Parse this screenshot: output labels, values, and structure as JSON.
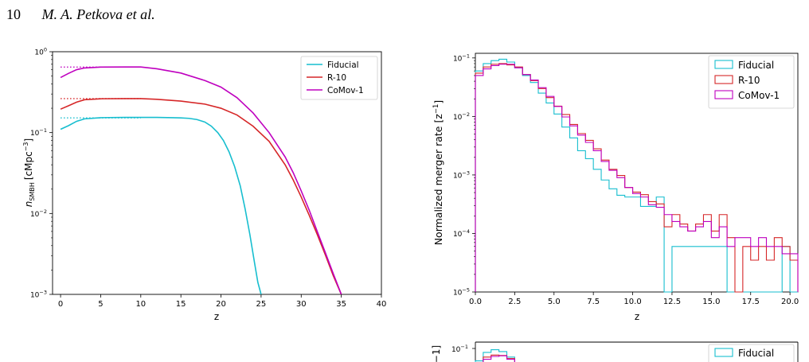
{
  "header": {
    "page_number": "10",
    "authors": "M. A. Petkova et al."
  },
  "chart_data": [
    {
      "type": "line",
      "xlabel": "z",
      "ylabel_main": "n",
      "ylabel_sub": "SMBH",
      "ylabel_unit": "[cMpc",
      "ylabel_exp": "−3",
      "ylabel_close": "]",
      "xlim": [
        -1,
        40
      ],
      "ylim": [
        0.001,
        1
      ],
      "yscale": "log",
      "xticks": [
        "0",
        "5",
        "10",
        "15",
        "20",
        "25",
        "30",
        "35",
        "40"
      ],
      "xtick_values": [
        0,
        5,
        10,
        15,
        20,
        25,
        30,
        35,
        40
      ],
      "yticks": [
        {
          "base": "10",
          "exp": "0",
          "value": 1
        },
        {
          "base": "10",
          "exp": "−1",
          "value": 0.1
        },
        {
          "base": "10",
          "exp": "−2",
          "value": 0.01
        },
        {
          "base": "10",
          "exp": "−3",
          "value": 0.001
        }
      ],
      "legend_position": "top-right",
      "series": [
        {
          "name": "Fiducial",
          "color": "#17becf",
          "x": [
            0,
            1,
            2,
            3,
            5,
            8,
            10,
            12,
            14,
            15,
            16,
            17,
            18,
            18.8,
            19.6,
            20.3,
            21,
            21.7,
            22.4,
            23,
            23.6,
            24.2,
            24.6,
            25
          ],
          "y": [
            0.11,
            0.122,
            0.138,
            0.148,
            0.153,
            0.154,
            0.154,
            0.154,
            0.153,
            0.152,
            0.15,
            0.145,
            0.135,
            0.12,
            0.1,
            0.08,
            0.058,
            0.038,
            0.022,
            0.0115,
            0.0055,
            0.0024,
            0.0014,
            0.001
          ],
          "dotted_level": 0.152
        },
        {
          "name": "R-10",
          "color": "#d62728",
          "x": [
            0,
            1,
            2,
            3,
            5,
            8,
            10,
            12,
            15,
            18,
            20,
            22,
            24,
            26,
            28,
            29,
            30,
            31,
            32,
            33,
            34,
            35
          ],
          "y": [
            0.195,
            0.215,
            0.238,
            0.255,
            0.262,
            0.263,
            0.263,
            0.258,
            0.245,
            0.225,
            0.2,
            0.165,
            0.12,
            0.078,
            0.04,
            0.026,
            0.016,
            0.0095,
            0.0055,
            0.0031,
            0.0017,
            0.001
          ],
          "dotted_level": 0.263
        },
        {
          "name": "CoMov-1",
          "color": "#bf00bf",
          "x": [
            0,
            1,
            2,
            3,
            5,
            8,
            10,
            12,
            15,
            18,
            20,
            22,
            24,
            26,
            28,
            29,
            30,
            31,
            32,
            33,
            34,
            35
          ],
          "y": [
            0.48,
            0.54,
            0.6,
            0.63,
            0.645,
            0.648,
            0.648,
            0.615,
            0.545,
            0.44,
            0.365,
            0.27,
            0.175,
            0.1,
            0.05,
            0.032,
            0.019,
            0.011,
            0.006,
            0.0033,
            0.0018,
            0.001
          ],
          "dotted_level": 0.645
        }
      ]
    },
    {
      "type": "histogram",
      "xlabel": "z",
      "ylabel": "Normalized merger rate [z",
      "ylabel_exp": "−1",
      "ylabel_close": "]",
      "xlim": [
        0,
        20.5
      ],
      "ylim": [
        1e-05,
        0.12
      ],
      "yscale": "log",
      "xticks": [
        "0.0",
        "2.5",
        "5.0",
        "7.5",
        "10.0",
        "12.5",
        "15.0",
        "17.5",
        "20.0"
      ],
      "xtick_values": [
        0,
        2.5,
        5,
        7.5,
        10,
        12.5,
        15,
        17.5,
        20
      ],
      "yticks": [
        {
          "base": "10",
          "exp": "−1",
          "value": 0.1
        },
        {
          "base": "10",
          "exp": "−2",
          "value": 0.01
        },
        {
          "base": "10",
          "exp": "−3",
          "value": 0.001
        },
        {
          "base": "10",
          "exp": "−4",
          "value": 0.0001
        },
        {
          "base": "10",
          "exp": "−5",
          "value": 1e-05
        }
      ],
      "bin_width": 0.5,
      "legend_position": "top-right",
      "series": [
        {
          "name": "Fiducial",
          "color": "#17becf",
          "values": [
            0.06,
            0.08,
            0.09,
            0.095,
            0.085,
            0.068,
            0.05,
            0.038,
            0.025,
            0.017,
            0.011,
            0.0066,
            0.0043,
            0.0026,
            0.0019,
            0.00125,
            0.00082,
            0.00058,
            0.00045,
            0.00042,
            0.00042,
            0.00029,
            0.00029,
            0.00042,
            1e-05,
            6e-05,
            6e-05,
            6e-05,
            6e-05,
            6e-05,
            6e-05,
            6e-05,
            1e-05,
            1e-05,
            1e-05,
            1e-05,
            1e-05,
            1e-05,
            1e-05,
            6e-05,
            1e-05,
            1e-05,
            1e-05,
            1e-05,
            1e-05,
            1e-05,
            1e-05,
            1e-05,
            1e-05,
            1e-05,
            1e-05
          ]
        },
        {
          "name": "R-10",
          "color": "#d62728",
          "values": [
            0.055,
            0.07,
            0.078,
            0.08,
            0.076,
            0.07,
            0.052,
            0.041,
            0.03,
            0.021,
            0.015,
            0.0108,
            0.0073,
            0.0051,
            0.0039,
            0.0028,
            0.0018,
            0.00125,
            0.00098,
            0.00061,
            0.00051,
            0.00046,
            0.00035,
            0.00032,
            0.00013,
            0.00021,
            0.000145,
            0.00011,
            0.000145,
            0.00021,
            0.00011,
            0.00021,
            8.5e-05,
            1e-05,
            6e-05,
            3.5e-05,
            6e-05,
            3.5e-05,
            8.5e-05,
            6e-05,
            3.5e-05,
            6e-05,
            8.5e-05,
            7e-05,
            7e-05,
            3.5e-05,
            2.5e-05,
            3.5e-05,
            1e-05,
            1e-05,
            1e-05,
            1e-05,
            1e-05,
            1e-05,
            1e-05,
            1e-05,
            1e-05,
            1e-05,
            1e-05,
            1e-05,
            1e-05,
            1e-05,
            1e-05,
            1e-05,
            1e-05,
            1e-05,
            1e-05,
            1e-05,
            1e-05,
            1e-05,
            1e-05,
            1e-05,
            1e-05,
            1e-05,
            1e-05,
            1e-05,
            1e-05,
            1e-05,
            1e-05,
            1e-05,
            3.5e-05
          ]
        },
        {
          "name": "CoMov-1",
          "color": "#bf00bf",
          "values": [
            0.05,
            0.065,
            0.074,
            0.078,
            0.078,
            0.068,
            0.052,
            0.042,
            0.031,
            0.022,
            0.0148,
            0.0098,
            0.0069,
            0.0048,
            0.0036,
            0.0026,
            0.0017,
            0.0012,
            0.0009,
            0.00061,
            0.00048,
            0.00042,
            0.00031,
            0.00028,
            0.00021,
            0.00016,
            0.00013,
            0.00011,
            0.00013,
            0.00016,
            8.5e-05,
            0.00013,
            6e-05,
            8.5e-05,
            8.5e-05,
            6e-05,
            8.5e-05,
            6e-05,
            6e-05,
            4.5e-05,
            4.5e-05,
            3.5e-05,
            6e-05,
            3.5e-05,
            3.5e-05,
            4.5e-05,
            3.5e-05,
            3.5e-05,
            3e-05,
            3e-05,
            3e-05,
            1e-05,
            1e-05,
            1e-05,
            1e-05,
            1e-05,
            1e-05,
            1e-05,
            1e-05,
            1e-05,
            1e-05,
            1e-05,
            1e-05,
            1e-05,
            1e-05,
            1e-05,
            1e-05,
            1e-05,
            1e-05,
            1e-05,
            1e-05,
            1e-05,
            1e-05,
            1e-05,
            1e-05,
            1e-05,
            1e-05,
            1e-05,
            1e-05,
            1e-05,
            1.4e-05
          ]
        }
      ]
    },
    {
      "type": "histogram",
      "ylabel": "−1]",
      "yticks": [
        {
          "base": "10",
          "exp": "−1",
          "value": 0.1
        }
      ],
      "legend_position": "top-right",
      "series": [
        {
          "name": "Fiducial",
          "color": "#17becf",
          "values": [
            0.06,
            0.085,
            0.095,
            0.088,
            0.07
          ]
        },
        {
          "name": "R-10",
          "color": "#d62728",
          "values": [
            0.055,
            0.07,
            0.076,
            0.075,
            0.066
          ]
        },
        {
          "name": "CoMov-1",
          "color": "#bf00bf",
          "values": [
            0.05,
            0.064,
            0.072,
            0.074,
            0.064
          ]
        }
      ]
    }
  ]
}
